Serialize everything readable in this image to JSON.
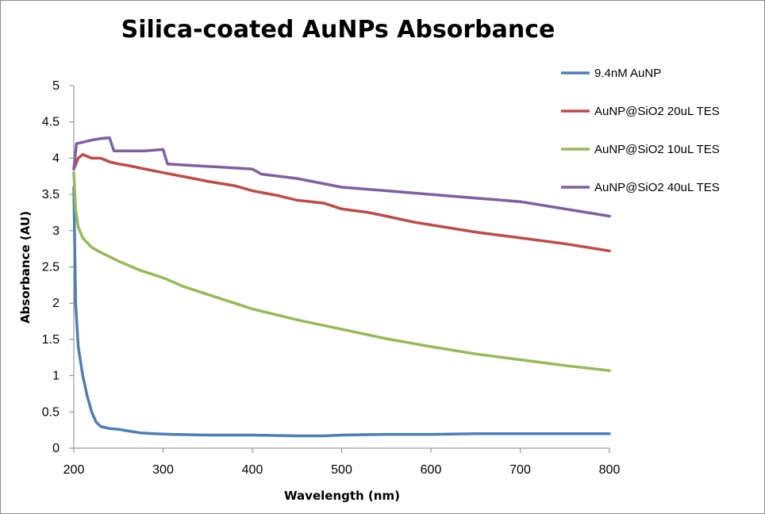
{
  "chart_data": {
    "type": "line",
    "title": "Silica-coated AuNPs Absorbance",
    "xlabel": "Wavelength  (nm)",
    "ylabel": "Absorbance (AU)",
    "xlim": [
      200,
      800
    ],
    "ylim": [
      0,
      5
    ],
    "x_ticks": [
      "200",
      "300",
      "400",
      "500",
      "600",
      "700",
      "800"
    ],
    "y_ticks": [
      "0",
      "0.5",
      "1",
      "1.5",
      "2",
      "2.5",
      "3",
      "3.5",
      "4",
      "4.5",
      "5"
    ],
    "grid": false,
    "legend_position": "right",
    "series": [
      {
        "name": "9.4nM AuNP",
        "color": "#4a7ebb",
        "x": [
          200,
          202,
          205,
          210,
          215,
          220,
          225,
          230,
          240,
          250,
          260,
          275,
          290,
          310,
          350,
          400,
          450,
          480,
          500,
          550,
          600,
          650,
          700,
          750,
          800
        ],
        "y": [
          3.6,
          2.0,
          1.4,
          1.0,
          0.72,
          0.5,
          0.36,
          0.3,
          0.27,
          0.26,
          0.24,
          0.21,
          0.2,
          0.19,
          0.18,
          0.18,
          0.17,
          0.17,
          0.18,
          0.19,
          0.19,
          0.2,
          0.2,
          0.2,
          0.2
        ]
      },
      {
        "name": "AuNP@SiO2 20uL TES",
        "color": "#be4b48",
        "x": [
          200,
          205,
          210,
          220,
          230,
          240,
          250,
          260,
          280,
          300,
          330,
          350,
          380,
          400,
          430,
          450,
          480,
          500,
          530,
          550,
          580,
          600,
          650,
          700,
          750,
          780,
          800
        ],
        "y": [
          3.85,
          4.0,
          4.05,
          4.0,
          4.0,
          3.95,
          3.92,
          3.9,
          3.85,
          3.8,
          3.73,
          3.68,
          3.62,
          3.55,
          3.48,
          3.42,
          3.38,
          3.3,
          3.25,
          3.2,
          3.12,
          3.08,
          2.98,
          2.9,
          2.82,
          2.76,
          2.72
        ]
      },
      {
        "name": "AuNP@SiO2 10uL TES",
        "color": "#98b954",
        "x": [
          200,
          202,
          205,
          210,
          220,
          230,
          250,
          275,
          300,
          325,
          350,
          400,
          450,
          500,
          550,
          600,
          650,
          700,
          750,
          800
        ],
        "y": [
          3.8,
          3.3,
          3.05,
          2.9,
          2.77,
          2.7,
          2.58,
          2.45,
          2.35,
          2.22,
          2.12,
          1.92,
          1.77,
          1.64,
          1.51,
          1.4,
          1.3,
          1.22,
          1.14,
          1.07
        ]
      },
      {
        "name": "AuNP@SiO2 40uL TES",
        "color": "#7d60a0",
        "x": [
          200,
          203,
          210,
          220,
          230,
          240,
          245,
          260,
          280,
          300,
          305,
          330,
          360,
          400,
          410,
          450,
          500,
          550,
          600,
          650,
          700,
          750,
          800
        ],
        "y": [
          3.85,
          4.2,
          4.22,
          4.25,
          4.27,
          4.28,
          4.1,
          4.1,
          4.1,
          4.12,
          3.92,
          3.9,
          3.88,
          3.85,
          3.78,
          3.72,
          3.6,
          3.55,
          3.5,
          3.45,
          3.4,
          3.3,
          3.2
        ]
      }
    ]
  }
}
